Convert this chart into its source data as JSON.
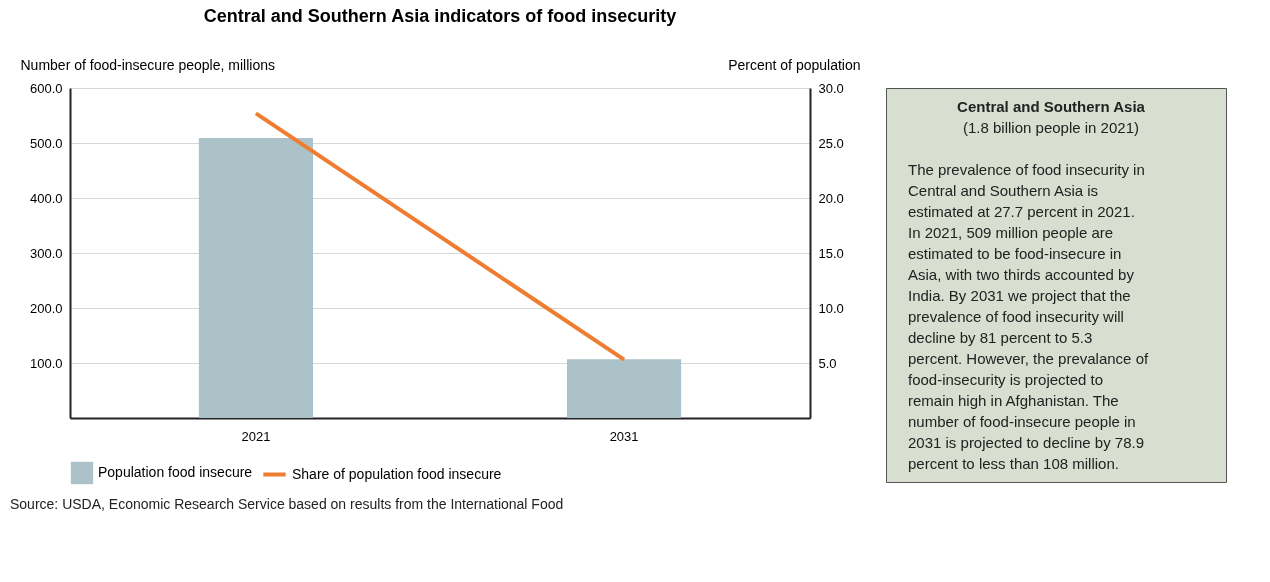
{
  "chart_data": [
    {
      "type": "bar",
      "title": "Central and Southern Asia indicators of food insecurity",
      "ylabel": "Number of food-insecure people, millions",
      "y2label": "Percent of population",
      "categories": [
        "2021",
        "2031"
      ],
      "series": [
        {
          "name": "Population food insecure",
          "type": "bar",
          "color": "#abc2c8",
          "values": [
            509,
            107
          ]
        },
        {
          "name": "Share of population food insecure",
          "type": "line",
          "axis": "y2",
          "color": "#ee7d31",
          "values": [
            27.7,
            5.3
          ]
        }
      ],
      "ylim": [
        0,
        600
      ],
      "yticks": [
        {
          "value": 100,
          "label": "100.0"
        },
        {
          "value": 200,
          "label": "200.0"
        },
        {
          "value": 300,
          "label": "300.0"
        },
        {
          "value": 400,
          "label": "400.0"
        },
        {
          "value": 500,
          "label": "500.0"
        },
        {
          "value": 600,
          "label": "600.0"
        }
      ],
      "y2lim": [
        0,
        30
      ],
      "y2ticks": [
        {
          "value": 5,
          "label": "5.0"
        },
        {
          "value": 10,
          "label": "10.0"
        },
        {
          "value": 15,
          "label": "15.0"
        },
        {
          "value": 20,
          "label": "20.0"
        },
        {
          "value": 25,
          "label": "25.0"
        },
        {
          "value": 30,
          "label": "30.0"
        }
      ],
      "grid": "y",
      "legend": "bottom",
      "line_style": "solid",
      "marker": "none",
      "annotations": [
        "Source: USDA, Economic Research Service based on results from the International Food"
      ]
    },
    {
      "type": "other",
      "title": "Central and Southern Asia",
      "subtitle": "(1.8 billion people in 2021)",
      "annotations": [
        "The prevalence of food insecurity in Central and Southern Asia is estimated at 27.7 percent in 2021. In 2021, 509 million people are estimated to be food-insecure in Asia, with two thirds accounted by India. By 2031 we project that the prevalence of food insecurity will decline by 81 percent to 5.3 percent. However, the prevalance of food-insecurity is projected to remain high in Afghanistan. The number of food-insecure people in 2031 is projected to decline by 78.9 percent to less than 108 million."
      ]
    }
  ]
}
